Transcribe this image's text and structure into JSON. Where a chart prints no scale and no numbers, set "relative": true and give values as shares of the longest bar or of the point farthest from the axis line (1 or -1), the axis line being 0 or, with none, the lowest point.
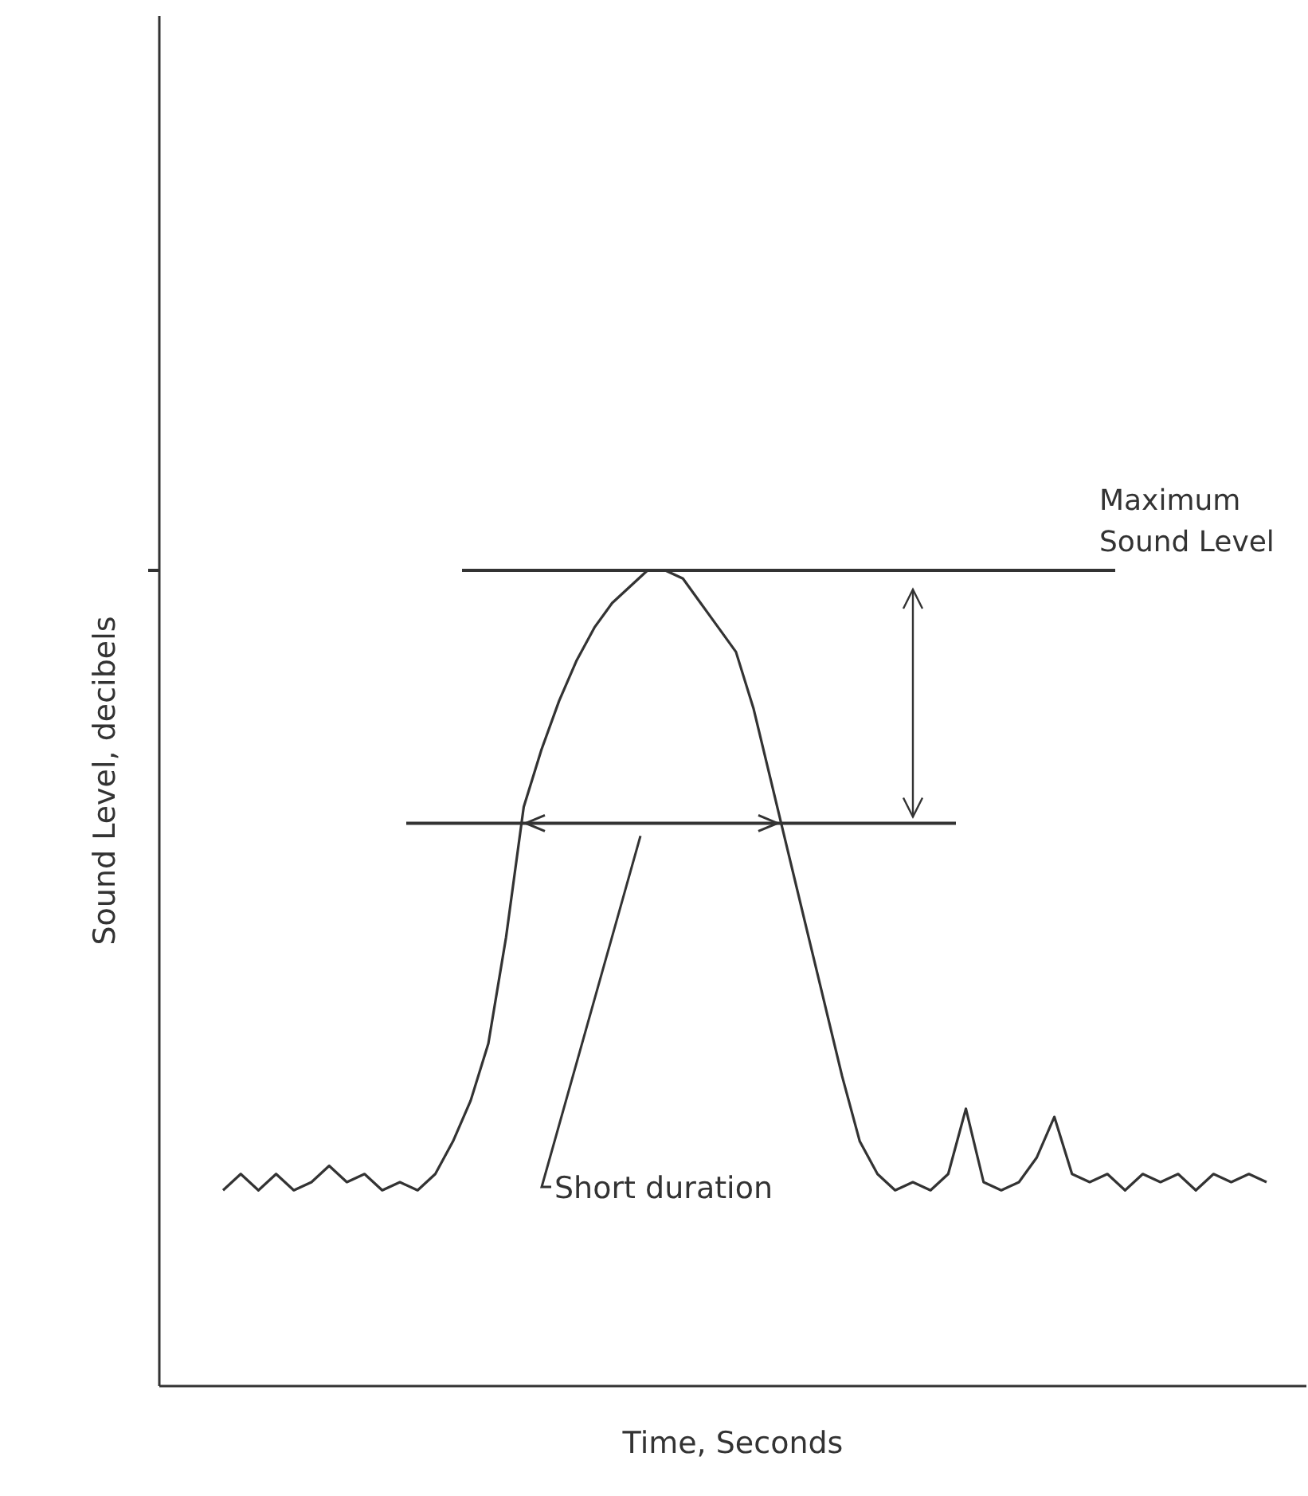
{
  "chart_data": {
    "type": "line",
    "relative": true,
    "xlabel": "Time, Seconds",
    "ylabel": "Sound Level, decibels",
    "categories": [
      null,
      null,
      null,
      null,
      null,
      null,
      null,
      null,
      null,
      null,
      null,
      null,
      null,
      null,
      null,
      null,
      null,
      null,
      null,
      null,
      null,
      null,
      null,
      null,
      null,
      null,
      null,
      null,
      null,
      null,
      null,
      null,
      null,
      null,
      null,
      null,
      null,
      null,
      null,
      null,
      null,
      null,
      null,
      null,
      null,
      null,
      null,
      null,
      null,
      null,
      null,
      null,
      null,
      null,
      null,
      null,
      null,
      null,
      null,
      null
    ],
    "series": [
      {
        "color": "#333333",
        "values": [
          0.24,
          0.26,
          0.24,
          0.26,
          0.24,
          0.25,
          0.27,
          0.25,
          0.26,
          0.24,
          0.25,
          0.24,
          0.26,
          0.3,
          0.35,
          0.42,
          0.55,
          0.71,
          0.78,
          0.84,
          0.89,
          0.93,
          0.96,
          0.98,
          1.0,
          1.0,
          0.99,
          0.96,
          0.93,
          0.9,
          0.83,
          0.74,
          0.65,
          0.56,
          0.47,
          0.38,
          0.3,
          0.26,
          0.24,
          0.25,
          0.24,
          0.26,
          0.34,
          0.25,
          0.24,
          0.25,
          0.28,
          0.33,
          0.26,
          0.25,
          0.26,
          0.24,
          0.26,
          0.25,
          0.26,
          0.24,
          0.26,
          0.25,
          0.26,
          0.25
        ]
      }
    ],
    "ref_lines": [
      {
        "axis": "y",
        "value": 1.0,
        "label": "Maximum Sound Level"
      },
      {
        "axis": "y",
        "value": 0.69
      }
    ],
    "annotations": [
      "Short duration"
    ],
    "marker": "none",
    "line_style": "solid"
  }
}
